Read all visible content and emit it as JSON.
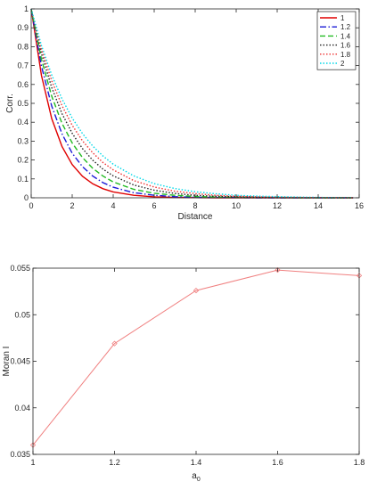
{
  "chart_data": [
    {
      "type": "line",
      "title": "",
      "xlabel": "Distance",
      "ylabel": "Corr.",
      "xlim": [
        0,
        16
      ],
      "ylim": [
        0,
        1
      ],
      "xticks": [
        0,
        2,
        4,
        6,
        8,
        10,
        12,
        14,
        16
      ],
      "yticks": [
        0,
        0.1,
        0.2,
        0.3,
        0.4,
        0.5,
        0.6,
        0.7,
        0.8,
        0.9,
        1
      ],
      "grid": false,
      "legend": "top-right",
      "x": [
        0,
        0.5,
        1,
        1.5,
        2,
        2.5,
        3,
        3.5,
        4,
        5,
        6,
        7,
        8,
        9,
        10,
        11,
        12,
        13,
        14,
        15,
        15.7
      ],
      "series": [
        {
          "name": "1",
          "color": "#e00000",
          "dash": "solid",
          "values": [
            1.0,
            0.648,
            0.42,
            0.272,
            0.176,
            0.114,
            0.074,
            0.048,
            0.031,
            0.013,
            0.005,
            0.002,
            0.001,
            0.0,
            0.0,
            0.0,
            0.0,
            0.0,
            0.0,
            0.0,
            0.0
          ]
        },
        {
          "name": "1.2",
          "color": "#1a1ad6",
          "dash": "dashdot",
          "values": [
            1.0,
            0.697,
            0.486,
            0.339,
            0.236,
            0.165,
            0.115,
            0.08,
            0.056,
            0.027,
            0.013,
            0.006,
            0.003,
            0.002,
            0.001,
            0.0,
            0.0,
            0.0,
            0.0,
            0.0,
            0.0
          ]
        },
        {
          "name": "1.4",
          "color": "#22bb22",
          "dash": "dashed",
          "values": [
            1.0,
            0.734,
            0.538,
            0.395,
            0.29,
            0.213,
            0.156,
            0.115,
            0.084,
            0.045,
            0.024,
            0.013,
            0.007,
            0.004,
            0.002,
            0.001,
            0.001,
            0.0,
            0.0,
            0.0,
            0.0
          ]
        },
        {
          "name": "1.6",
          "color": "#222222",
          "dash": "dotted",
          "values": [
            1.0,
            0.764,
            0.584,
            0.446,
            0.341,
            0.261,
            0.199,
            0.152,
            0.116,
            0.068,
            0.04,
            0.023,
            0.013,
            0.008,
            0.005,
            0.003,
            0.002,
            0.001,
            0.001,
            0.0,
            0.0
          ]
        },
        {
          "name": "1.8",
          "color": "#ee3333",
          "dash": "dotted",
          "values": [
            1.0,
            0.787,
            0.62,
            0.488,
            0.384,
            0.302,
            0.238,
            0.187,
            0.148,
            0.091,
            0.057,
            0.035,
            0.022,
            0.013,
            0.008,
            0.005,
            0.003,
            0.002,
            0.001,
            0.001,
            0.0
          ]
        },
        {
          "name": "2",
          "color": "#00d8e8",
          "dash": "dotted",
          "values": [
            1.0,
            0.806,
            0.65,
            0.524,
            0.422,
            0.34,
            0.274,
            0.221,
            0.178,
            0.116,
            0.075,
            0.049,
            0.032,
            0.021,
            0.013,
            0.009,
            0.006,
            0.004,
            0.002,
            0.001,
            0.001
          ]
        }
      ]
    },
    {
      "type": "line",
      "title": "",
      "xlabel": "a",
      "xlabel_sub": "0",
      "ylabel": "Moran I",
      "xlim": [
        1,
        1.8
      ],
      "ylim": [
        0.035,
        0.055
      ],
      "xticks": [
        1,
        1.2,
        1.4,
        1.6,
        1.8
      ],
      "yticks": [
        0.035,
        0.04,
        0.045,
        0.05,
        0.055
      ],
      "grid": false,
      "marker": "diamond",
      "series": [
        {
          "color": "#f08080",
          "x": [
            1,
            1.2,
            1.4,
            1.6,
            1.8
          ],
          "values": [
            0.036,
            0.0469,
            0.0526,
            0.0548,
            0.0542
          ]
        }
      ]
    }
  ]
}
